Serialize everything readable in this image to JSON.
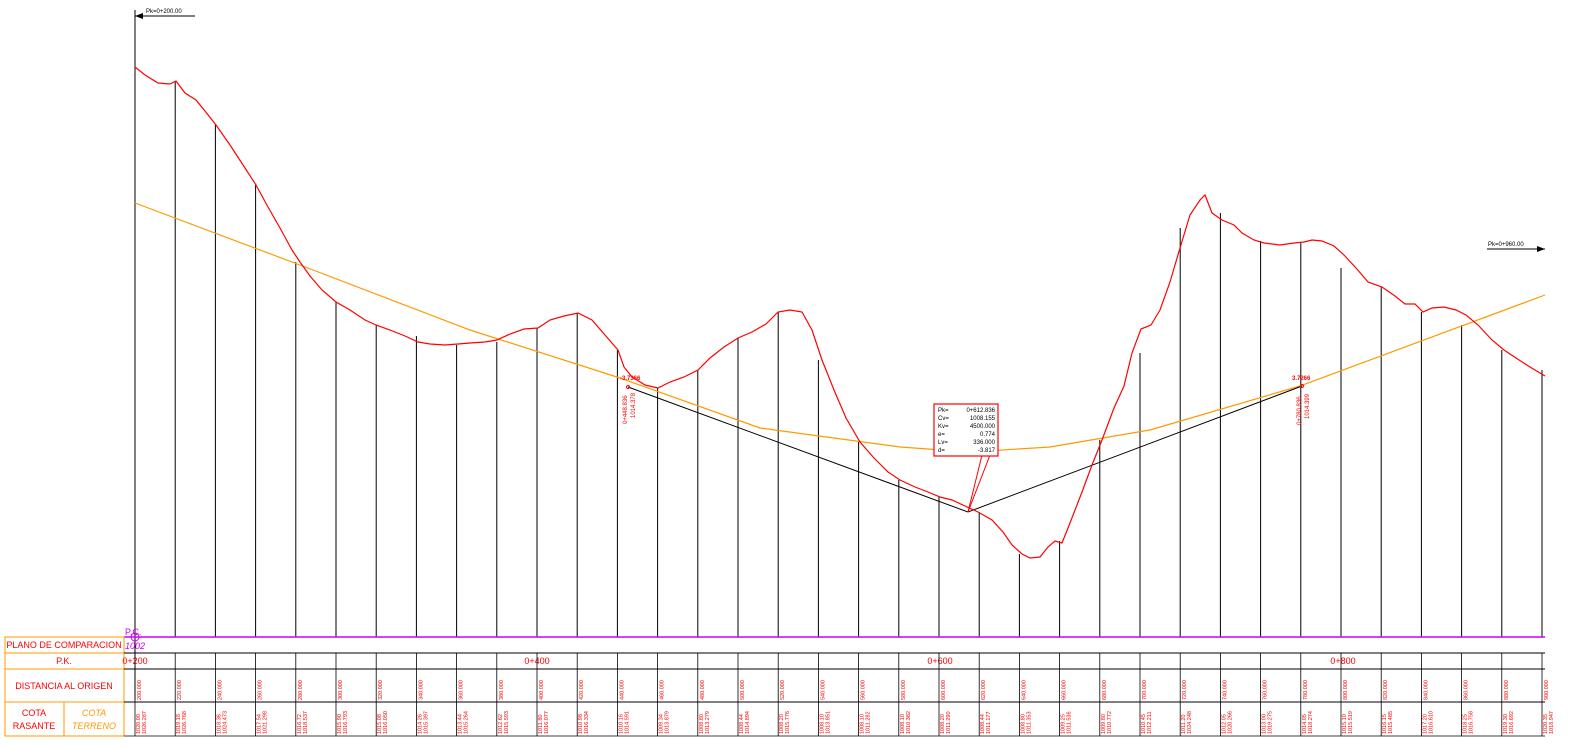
{
  "colors": {
    "terrain": "#ff0000",
    "grade": "#ff9900",
    "tangent": "#000000",
    "datum": "#cc00ff",
    "table_border": "#ff9900",
    "table_text": "#ff0000",
    "background": "#ffffff"
  },
  "markers": {
    "start": "Pk=0+200.00",
    "end": "Pk=0+960.00"
  },
  "datum": {
    "pc_label": "P.C.",
    "elevation": "1002"
  },
  "table": {
    "rows": [
      "PLANO DE COMPARACION",
      "P.K.",
      "DISTANCIA AL ORIGEN"
    ],
    "cota_rasante": [
      "COTA",
      "RASANTE"
    ],
    "cota_terreno": [
      "COTA",
      "TERRENO"
    ],
    "chainages": [
      "0+200",
      "0+400",
      "0+600",
      "0+800"
    ]
  },
  "vertices": [
    {
      "id": "v1",
      "flag": "-3.7366",
      "pk": "0+448.836",
      "elev": "1014.378"
    },
    {
      "id": "v2",
      "flag": "3.7266",
      "pk": "0+780.836",
      "elev": "1014.399"
    }
  ],
  "curve_box": {
    "rows": [
      {
        "k": "Pk=",
        "v": "0+612.836"
      },
      {
        "k": "Cv=",
        "v": "1008.155"
      },
      {
        "k": "Kv=",
        "v": "4500.000"
      },
      {
        "k": "e=",
        "v": "0.774"
      },
      {
        "k": "Lv=",
        "v": "336.000"
      },
      {
        "k": "d=",
        "v": "-3.817"
      }
    ]
  },
  "stations": [
    {
      "dist": "200.000",
      "rasante": "1020.00",
      "terreno": "1026.287"
    },
    {
      "dist": "220.000",
      "rasante": "1019.18",
      "terreno": "1026.768"
    },
    {
      "dist": "240.000",
      "rasante": "1018.36",
      "terreno": "1024.473"
    },
    {
      "dist": "260.000",
      "rasante": "1017.54",
      "terreno": "1021.298"
    },
    {
      "dist": "280.000",
      "rasante": "1016.72",
      "terreno": "1018.537"
    },
    {
      "dist": "300.000",
      "rasante": "1015.90",
      "terreno": "1016.793"
    },
    {
      "dist": "320.000",
      "rasante": "1015.08",
      "terreno": "1016.050"
    },
    {
      "dist": "340.000",
      "rasante": "1014.26",
      "terreno": "1015.397"
    },
    {
      "dist": "360.000",
      "rasante": "1013.44",
      "terreno": "1015.264"
    },
    {
      "dist": "380.000",
      "rasante": "1012.62",
      "terreno": "1015.593"
    },
    {
      "dist": "400.000",
      "rasante": "1011.80",
      "terreno": "1016.077"
    },
    {
      "dist": "420.000",
      "rasante": "1010.98",
      "terreno": "1016.334"
    },
    {
      "dist": "440.000",
      "rasante": "1010.16",
      "terreno": "1014.591"
    },
    {
      "dist": "460.000",
      "rasante": "1009.34",
      "terreno": "1013.879"
    },
    {
      "dist": "480.000",
      "rasante": "1008.80",
      "terreno": "1013.279"
    },
    {
      "dist": "500.000",
      "rasante": "1008.44",
      "terreno": "1014.894"
    },
    {
      "dist": "520.000",
      "rasante": "1008.20",
      "terreno": "1015.776"
    },
    {
      "dist": "540.000",
      "rasante": "1008.10",
      "terreno": "1013.851"
    },
    {
      "dist": "560.000",
      "rasante": "1008.10",
      "terreno": "1011.282"
    },
    {
      "dist": "580.000",
      "rasante": "1008.10",
      "terreno": "1010.382"
    },
    {
      "dist": "600.000",
      "rasante": "1008.20",
      "terreno": "1011.290"
    },
    {
      "dist": "620.000",
      "rasante": "1008.44",
      "terreno": "1011.177"
    },
    {
      "dist": "640.000",
      "rasante": "1008.80",
      "terreno": "1011.353"
    },
    {
      "dist": "660.000",
      "rasante": "1009.25",
      "terreno": "1011.536"
    },
    {
      "dist": "680.000",
      "rasante": "1009.80",
      "terreno": "1010.772"
    },
    {
      "dist": "700.000",
      "rasante": "1010.45",
      "terreno": "1012.211"
    },
    {
      "dist": "720.000",
      "rasante": "1011.20",
      "terreno": "1024.248"
    },
    {
      "dist": "740.000",
      "rasante": "1012.05",
      "terreno": "1020.266"
    },
    {
      "dist": "760.000",
      "rasante": "1013.00",
      "terreno": "1019.275"
    },
    {
      "dist": "780.000",
      "rasante": "1014.05",
      "terreno": "1018.274"
    },
    {
      "dist": "800.000",
      "rasante": "1015.10",
      "terreno": "1015.519"
    },
    {
      "dist": "820.000",
      "rasante": "1016.15",
      "terreno": "1015.485"
    },
    {
      "dist": "840.000",
      "rasante": "1017.20",
      "terreno": "1016.610"
    },
    {
      "dist": "860.000",
      "rasante": "1018.25",
      "terreno": "1016.758"
    },
    {
      "dist": "880.000",
      "rasante": "1019.30",
      "terreno": "1016.692"
    },
    {
      "dist": "900.000",
      "rasante": "1020.35",
      "terreno": "1018.947"
    }
  ],
  "chart_data": {
    "type": "line",
    "x": [
      200,
      220,
      240,
      260,
      280,
      300,
      320,
      340,
      360,
      380,
      400,
      420,
      440,
      460,
      480,
      500,
      520,
      540,
      560,
      580,
      600,
      620,
      640,
      660,
      680,
      700,
      720,
      740,
      760,
      780,
      800,
      820,
      840,
      860,
      880,
      900
    ],
    "series": [
      {
        "values": [
          1026.29,
          1026.77,
          1024.47,
          1021.3,
          1018.54,
          1016.79,
          1016.05,
          1015.4,
          1015.26,
          1015.59,
          1016.08,
          1016.33,
          1014.59,
          1013.88,
          1013.28,
          1014.89,
          1015.78,
          1013.85,
          1011.28,
          1010.38,
          1011.29,
          1011.18,
          1011.35,
          1011.54,
          1010.77,
          1012.21,
          1024.25,
          1020.27,
          1019.28,
          1018.27,
          1015.52,
          1015.49,
          1016.61,
          1016.76,
          1016.69,
          1018.95
        ]
      },
      {
        "values": [
          1020.0,
          1019.18,
          1018.36,
          1017.54,
          1016.72,
          1015.9,
          1015.08,
          1014.26,
          1013.44,
          1012.62,
          1011.8,
          1010.98,
          1010.16,
          1009.34,
          1008.8,
          1008.44,
          1008.2,
          1008.1,
          1008.1,
          1008.1,
          1008.2,
          1008.44,
          1008.8,
          1009.25,
          1009.8,
          1010.45,
          1011.2,
          1012.05,
          1013.0,
          1014.05,
          1015.1,
          1016.15,
          1017.2,
          1018.25,
          1019.3,
          1020.35
        ]
      }
    ],
    "xlim": [
      200,
      900
    ]
  }
}
